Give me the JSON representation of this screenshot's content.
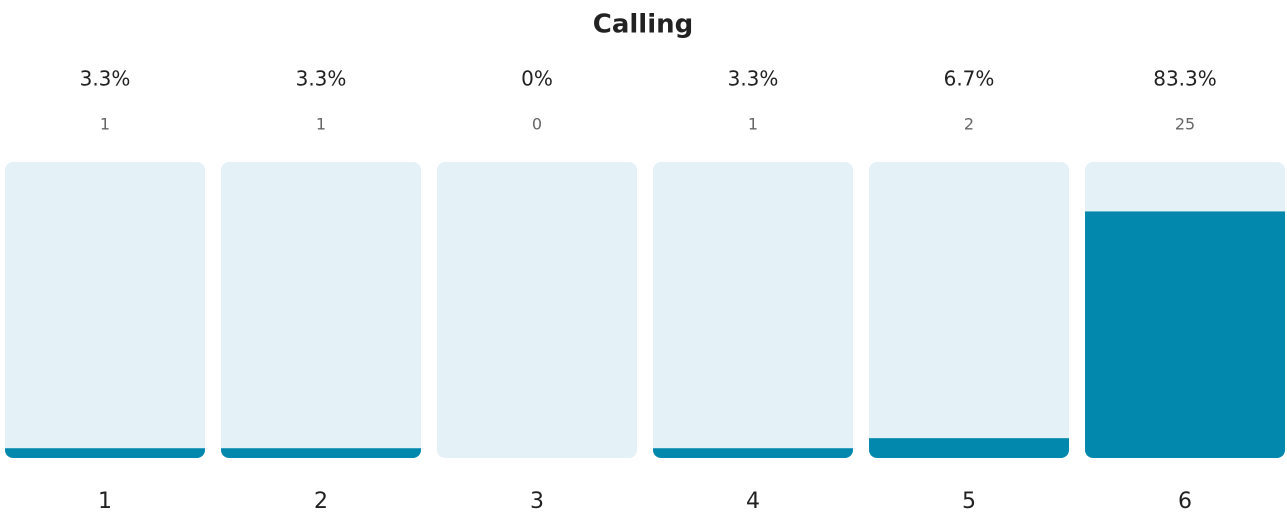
{
  "chart_data": {
    "type": "bar",
    "title": "Calling",
    "categories": [
      "1",
      "2",
      "3",
      "4",
      "5",
      "6"
    ],
    "values": [
      3.3,
      3.3,
      0,
      3.3,
      6.7,
      83.3
    ],
    "value_labels": [
      "3.3%",
      "3.3%",
      "0%",
      "3.3%",
      "6.7%",
      "83.3%"
    ],
    "counts": [
      1,
      1,
      0,
      1,
      2,
      25
    ],
    "color": "#0388ad",
    "track_color": "#e4f1f6",
    "ylim": [
      0,
      100
    ]
  }
}
